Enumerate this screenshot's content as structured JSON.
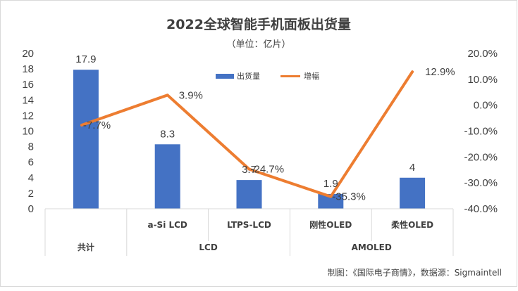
{
  "chart_data": {
    "type": "bar",
    "title": "2022全球智能手机面板出货量",
    "subtitle": "（单位：亿片）",
    "categories": [
      "共计",
      "a-Si LCD",
      "LTPS-LCD",
      "刚性OLED",
      "柔性OLED"
    ],
    "groups": [
      {
        "label": "共计",
        "span": [
          0,
          0
        ]
      },
      {
        "label": "LCD",
        "span": [
          1,
          2
        ]
      },
      {
        "label": "AMOLED",
        "span": [
          3,
          4
        ]
      }
    ],
    "series": [
      {
        "name": "出货量",
        "type": "bar",
        "axis": "left",
        "values": [
          17.9,
          8.3,
          3.7,
          1.9,
          4
        ],
        "labels": [
          "17.9",
          "8.3",
          "3.7",
          "1.9",
          "4"
        ]
      },
      {
        "name": "增幅",
        "type": "line",
        "axis": "right",
        "values": [
          -7.7,
          3.9,
          -24.7,
          -35.3,
          12.9
        ],
        "labels": [
          "-7.7%",
          "3.9%",
          "-24.7%",
          "-35.3%",
          "12.9%"
        ]
      }
    ],
    "ylim_left": [
      0,
      20
    ],
    "yticks_left": [
      "0",
      "2",
      "4",
      "6",
      "8",
      "10",
      "12",
      "14",
      "16",
      "18",
      "20"
    ],
    "ylim_right": [
      -40,
      20
    ],
    "yticks_right": [
      "-40.0%",
      "-30.0%",
      "-20.0%",
      "-10.0%",
      "0.0%",
      "10.0%",
      "20.0%"
    ],
    "legend_position": "top-center",
    "grid": false,
    "colors": {
      "bar": "#4472c4",
      "line": "#ed7d31"
    }
  },
  "source_note": "制图：《国际电子商情》，数据源：Sigmaintell"
}
